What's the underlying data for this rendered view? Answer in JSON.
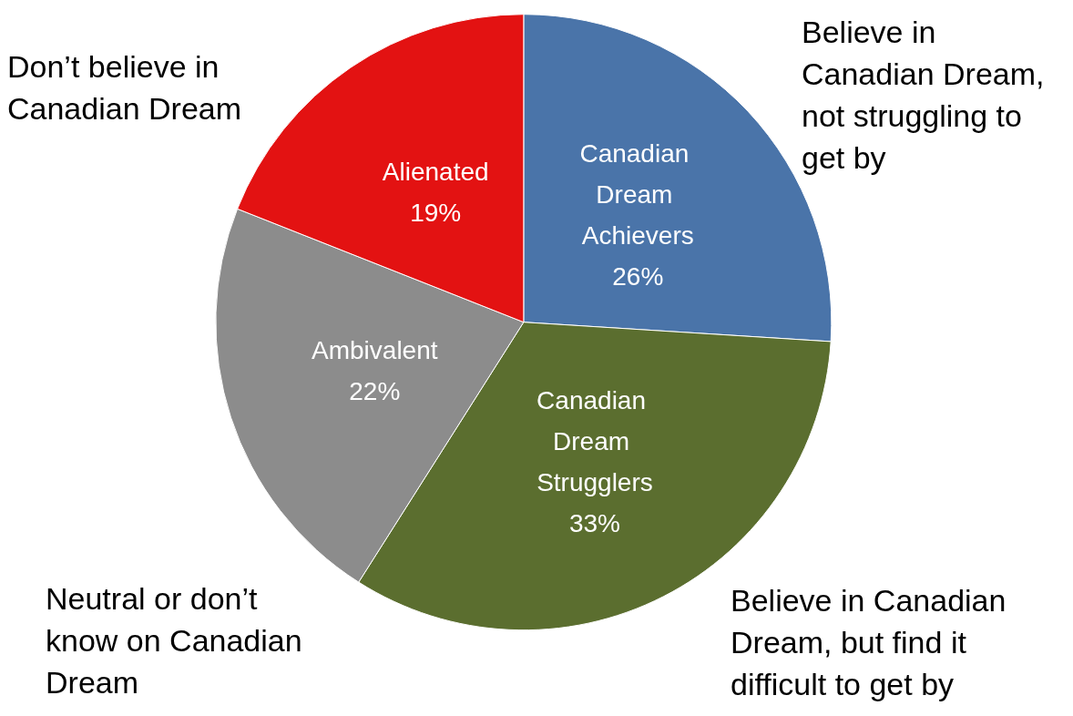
{
  "chart_data": {
    "type": "pie",
    "categories": [
      "Canadian Dream Achievers",
      "Canadian Dream Strugglers",
      "Ambivalent",
      "Alienated"
    ],
    "values": [
      26,
      33,
      22,
      19
    ],
    "value_labels": [
      "26%",
      "33%",
      "22%",
      "19%"
    ],
    "colors": [
      "#4a74a9",
      "#5b6e2f",
      "#8c8c8c",
      "#e31212"
    ],
    "legend": false,
    "annotations": [
      "Believe in Canadian Dream, not struggling to get by",
      "Believe in Canadian Dream, but find it difficult to get by",
      "Neutral or don’t know on Canadian Dream",
      "Don’t believe in Canadian Dream"
    ]
  }
}
